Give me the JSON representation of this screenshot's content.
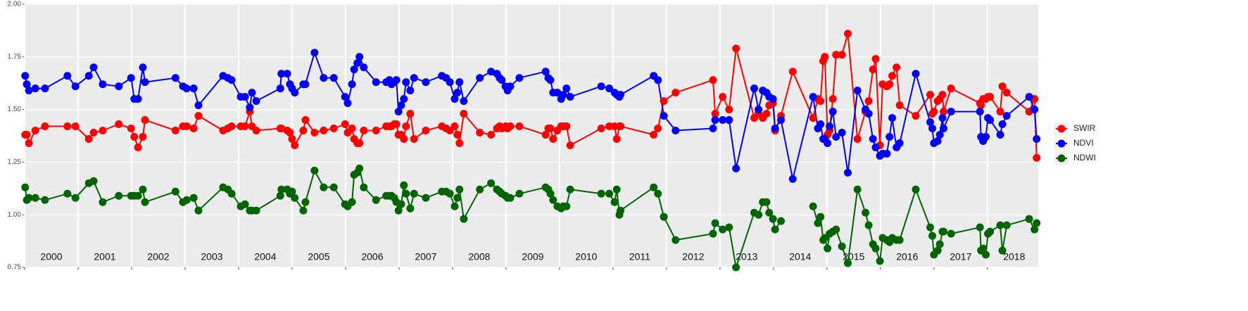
{
  "chart_data": {
    "type": "line",
    "x": [
      2000.01,
      2000.04,
      2000.08,
      2000.2,
      2000.38,
      2000.8,
      2000.95,
      2001.2,
      2001.29,
      2001.46,
      2001.76,
      2001.99,
      2002.05,
      2002.12,
      2002.21,
      2002.25,
      2002.82,
      2002.96,
      2003.03,
      2003.16,
      2003.25,
      2003.71,
      2003.8,
      2003.87,
      2004.04,
      2004.12,
      2004.21,
      2004.25,
      2004.33,
      2004.78,
      2004.8,
      2004.91,
      2004.96,
      2005,
      2005.05,
      2005.21,
      2005.25,
      2005.42,
      2005.59,
      2005.78,
      2005.99,
      2006.04,
      2006.12,
      2006.16,
      2006.22,
      2006.26,
      2006.34,
      2006.57,
      2006.76,
      2006.82,
      2006.86,
      2006.91,
      2006.95,
      2006.99,
      2007.04,
      2007.09,
      2007.13,
      2007.21,
      2007.28,
      2007.5,
      2007.8,
      2007.88,
      2007.95,
      2008.04,
      2008.09,
      2008.13,
      2008.21,
      2008.51,
      2008.72,
      2008.83,
      2008.88,
      2008.92,
      2008.99,
      2009.03,
      2009.08,
      2009.25,
      2009.74,
      2009.79,
      2009.83,
      2009.88,
      2009.96,
      2010.03,
      2010.07,
      2010.13,
      2010.2,
      2010.78,
      2010.93,
      2011.03,
      2011.07,
      2011.12,
      2011.14,
      2011.76,
      2011.84,
      2011.95,
      2012.17,
      2012.87,
      2012.91,
      2013.05,
      2013.17,
      2013.3,
      2013.64,
      2013.72,
      2013.8,
      2013.87,
      2013.92,
      2013.99,
      2014.03,
      2014.14,
      2014.36,
      2014.74,
      2014.83,
      2014.88,
      2014.93,
      2014.96,
      2015.01,
      2015.05,
      2015.11,
      2015.17,
      2015.28,
      2015.39,
      2015.57,
      2015.72,
      2015.78,
      2015.86,
      2015.91,
      2015.99,
      2016.04,
      2016.12,
      2016.17,
      2016.22,
      2016.3,
      2016.36,
      2016.66,
      2016.93,
      2016.97,
      2017,
      2017.07,
      2017.11,
      2017.16,
      2017.18,
      2017.32,
      2017.86,
      2017.88,
      2017.92,
      2017.97,
      2018.01,
      2018.05,
      2018.24,
      2018.28,
      2018.36,
      2018.78,
      2018.88,
      2018.92
    ],
    "series": [
      {
        "name": "SWIR",
        "color": "#ff0000",
        "values": [
          1.38,
          1.38,
          1.34,
          1.4,
          1.42,
          1.42,
          1.42,
          1.36,
          1.39,
          1.4,
          1.43,
          1.41,
          1.37,
          1.32,
          1.37,
          1.45,
          1.4,
          1.42,
          1.42,
          1.41,
          1.47,
          1.4,
          1.41,
          1.42,
          1.42,
          1.42,
          1.49,
          1.42,
          1.4,
          1.41,
          1.41,
          1.4,
          1.39,
          1.36,
          1.33,
          1.4,
          1.45,
          1.39,
          1.4,
          1.41,
          1.43,
          1.39,
          1.41,
          1.36,
          1.34,
          1.34,
          1.4,
          1.4,
          1.42,
          1.42,
          1.42,
          1.43,
          1.43,
          1.38,
          1.38,
          1.36,
          1.42,
          1.48,
          1.36,
          1.4,
          1.42,
          1.41,
          1.4,
          1.42,
          1.38,
          1.34,
          1.48,
          1.39,
          1.38,
          1.41,
          1.42,
          1.41,
          1.42,
          1.41,
          1.42,
          1.42,
          1.38,
          1.41,
          1.41,
          1.36,
          1.4,
          1.42,
          1.42,
          1.42,
          1.33,
          1.41,
          1.42,
          1.42,
          1.36,
          1.42,
          1.42,
          1.38,
          1.41,
          1.54,
          1.58,
          1.64,
          1.48,
          1.56,
          1.5,
          1.79,
          1.46,
          1.48,
          1.46,
          1.48,
          1.52,
          1.53,
          1.4,
          1.47,
          1.68,
          1.46,
          1.55,
          1.54,
          1.73,
          1.75,
          1.38,
          1.4,
          1.55,
          1.76,
          1.76,
          1.86,
          1.36,
          1.49,
          1.54,
          1.69,
          1.74,
          1.33,
          1.62,
          1.61,
          1.62,
          1.66,
          1.7,
          1.52,
          1.47,
          1.57,
          1.48,
          1.49,
          1.54,
          1.55,
          1.57,
          1.49,
          1.6,
          1.53,
          1.52,
          1.55,
          1.55,
          1.56,
          1.56,
          1.49,
          1.61,
          1.58,
          1.49,
          1.55,
          1.27
        ]
      },
      {
        "name": "NDVI",
        "color": "#0000ff",
        "values": [
          1.66,
          1.62,
          1.59,
          1.6,
          1.6,
          1.66,
          1.61,
          1.66,
          1.7,
          1.62,
          1.61,
          1.65,
          1.55,
          1.55,
          1.7,
          1.63,
          1.65,
          1.61,
          1.6,
          1.6,
          1.52,
          1.66,
          1.65,
          1.64,
          1.56,
          1.56,
          1.51,
          1.58,
          1.54,
          1.6,
          1.67,
          1.67,
          1.62,
          1.6,
          1.58,
          1.62,
          1.62,
          1.77,
          1.65,
          1.65,
          1.56,
          1.53,
          1.62,
          1.69,
          1.72,
          1.75,
          1.7,
          1.63,
          1.63,
          1.64,
          1.62,
          1.63,
          1.64,
          1.49,
          1.52,
          1.55,
          1.63,
          1.59,
          1.65,
          1.63,
          1.66,
          1.65,
          1.63,
          1.55,
          1.58,
          1.63,
          1.54,
          1.65,
          1.68,
          1.67,
          1.65,
          1.64,
          1.61,
          1.59,
          1.61,
          1.65,
          1.68,
          1.65,
          1.64,
          1.58,
          1.58,
          1.55,
          1.57,
          1.6,
          1.56,
          1.61,
          1.6,
          1.58,
          1.57,
          1.56,
          1.57,
          1.66,
          1.64,
          1.47,
          1.4,
          1.41,
          1.45,
          1.45,
          1.45,
          1.22,
          1.6,
          1.5,
          1.59,
          1.58,
          1.56,
          1.55,
          1.41,
          1.45,
          1.17,
          1.56,
          1.41,
          1.43,
          1.36,
          1.36,
          1.34,
          1.42,
          1.49,
          1.37,
          1.39,
          1.2,
          1.59,
          1.5,
          1.48,
          1.36,
          1.32,
          1.28,
          1.29,
          1.29,
          1.37,
          1.46,
          1.32,
          1.34,
          1.67,
          1.44,
          1.41,
          1.34,
          1.35,
          1.38,
          1.46,
          1.41,
          1.49,
          1.49,
          1.37,
          1.35,
          1.37,
          1.46,
          1.45,
          1.38,
          1.43,
          1.47,
          1.56,
          1.5,
          1.36
        ]
      },
      {
        "name": "NDWI",
        "color": "#006400",
        "values": [
          1.13,
          1.07,
          1.08,
          1.08,
          1.07,
          1.1,
          1.08,
          1.15,
          1.16,
          1.06,
          1.09,
          1.09,
          1.09,
          1.09,
          1.12,
          1.06,
          1.11,
          1.06,
          1.07,
          1.08,
          1.02,
          1.13,
          1.12,
          1.1,
          1.04,
          1.05,
          1.02,
          1.02,
          1.02,
          1.09,
          1.12,
          1.12,
          1.1,
          1.11,
          1.08,
          1.02,
          1.06,
          1.21,
          1.13,
          1.13,
          1.05,
          1.04,
          1.06,
          1.19,
          1.2,
          1.22,
          1.13,
          1.07,
          1.09,
          1.09,
          1.09,
          1.08,
          1.06,
          1.02,
          1.05,
          1.14,
          1.1,
          1.03,
          1.1,
          1.08,
          1.11,
          1.11,
          1.1,
          1.04,
          1.08,
          1.12,
          0.98,
          1.12,
          1.15,
          1.12,
          1.11,
          1.1,
          1.09,
          1.08,
          1.08,
          1.1,
          1.13,
          1.12,
          1.1,
          1.07,
          1.04,
          1.03,
          1.04,
          1.04,
          1.12,
          1.1,
          1.1,
          1.06,
          1.12,
          1.0,
          1.02,
          1.13,
          1.1,
          0.99,
          0.88,
          0.91,
          0.96,
          0.93,
          0.94,
          0.75,
          1.01,
          1.0,
          1.06,
          1.06,
          1.01,
          0.98,
          0.93,
          0.97,
          null,
          1.04,
          0.96,
          0.99,
          0.88,
          0.89,
          0.84,
          0.91,
          0.92,
          0.93,
          0.85,
          0.77,
          1.12,
          1.01,
          0.95,
          0.86,
          0.84,
          0.78,
          0.89,
          0.88,
          0.87,
          0.89,
          0.88,
          0.88,
          1.12,
          0.94,
          0.9,
          0.81,
          0.83,
          0.86,
          0.92,
          0.92,
          0.91,
          0.94,
          0.83,
          0.84,
          0.81,
          0.91,
          0.92,
          0.95,
          0.83,
          0.95,
          0.98,
          0.93,
          0.96
        ]
      }
    ],
    "xlim": [
      2000,
      2018.95
    ],
    "xticks": [
      2000,
      2001,
      2002,
      2003,
      2004,
      2005,
      2006,
      2007,
      2008,
      2009,
      2010,
      2011,
      2012,
      2013,
      2014,
      2015,
      2016,
      2017,
      2018
    ],
    "ylim": [
      0.75,
      2
    ],
    "yticks": [
      {
        "value": 0.75,
        "label": "0.75"
      },
      {
        "value": 1,
        "label": "1.00"
      },
      {
        "value": 1.25,
        "label": "1.25"
      },
      {
        "value": 1.5,
        "label": "1.50"
      },
      {
        "value": 1.75,
        "label": "1.75"
      },
      {
        "value": 2,
        "label": "2.00"
      }
    ],
    "year_labels": [
      "2000",
      "2001",
      "2002",
      "2003",
      "2004",
      "2005",
      "2006",
      "2007",
      "2008",
      "2009",
      "2010",
      "2011",
      "2012",
      "2013",
      "2014",
      "2015",
      "2016",
      "2017",
      "2018"
    ],
    "grid": true,
    "legend": "right"
  }
}
